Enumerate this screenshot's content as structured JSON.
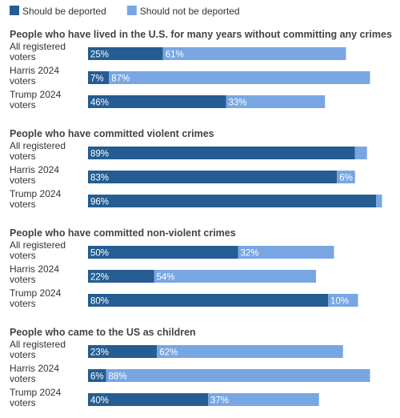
{
  "colors": {
    "deported": "#255d92",
    "not_deported": "#78a6e2",
    "text_dark": "#444444",
    "text_label": "#333333",
    "bar_text": "#ffffff"
  },
  "chart_data": {
    "type": "bar",
    "orientation": "horizontal",
    "stacked": true,
    "legend": {
      "placement": "top-left",
      "entries": [
        {
          "key": "deported",
          "label": "Should be deported"
        },
        {
          "key": "not_deported",
          "label": "Should not be deported"
        }
      ]
    },
    "xlim": [
      0,
      100
    ],
    "unit": "%",
    "groups": [
      {
        "title": "People who have lived in the U.S. for many years without committing any crimes",
        "rows": [
          {
            "label_lines": [
              "All registered",
              "voters"
            ],
            "deported": 25,
            "not_deported": 61
          },
          {
            "label_lines": [
              "Harris 2024",
              "voters"
            ],
            "deported": 7,
            "not_deported": 87
          },
          {
            "label_lines": [
              "Trump 2024",
              "voters"
            ],
            "deported": 46,
            "not_deported": 33
          }
        ]
      },
      {
        "title": "People who have committed violent crimes",
        "rows": [
          {
            "label_lines": [
              "All registered",
              "voters"
            ],
            "deported": 89,
            "not_deported": 4,
            "hide_not_deported_label": true
          },
          {
            "label_lines": [
              "Harris 2024",
              "voters"
            ],
            "deported": 83,
            "not_deported": 6
          },
          {
            "label_lines": [
              "Trump 2024",
              "voters"
            ],
            "deported": 96,
            "not_deported": 2,
            "hide_not_deported_label": true
          }
        ]
      },
      {
        "title": "People who have committed non-violent crimes",
        "rows": [
          {
            "label_lines": [
              "All registered",
              "voters"
            ],
            "deported": 50,
            "not_deported": 32
          },
          {
            "label_lines": [
              "Harris 2024",
              "voters"
            ],
            "deported": 22,
            "not_deported": 54
          },
          {
            "label_lines": [
              "Trump 2024",
              "voters"
            ],
            "deported": 80,
            "not_deported": 10
          }
        ]
      },
      {
        "title": "People who came to the US as children",
        "rows": [
          {
            "label_lines": [
              "All registered",
              "voters"
            ],
            "deported": 23,
            "not_deported": 62
          },
          {
            "label_lines": [
              "Harris 2024",
              "voters"
            ],
            "deported": 6,
            "not_deported": 88
          },
          {
            "label_lines": [
              "Trump 2024",
              "voters"
            ],
            "deported": 40,
            "not_deported": 37
          }
        ]
      }
    ]
  }
}
